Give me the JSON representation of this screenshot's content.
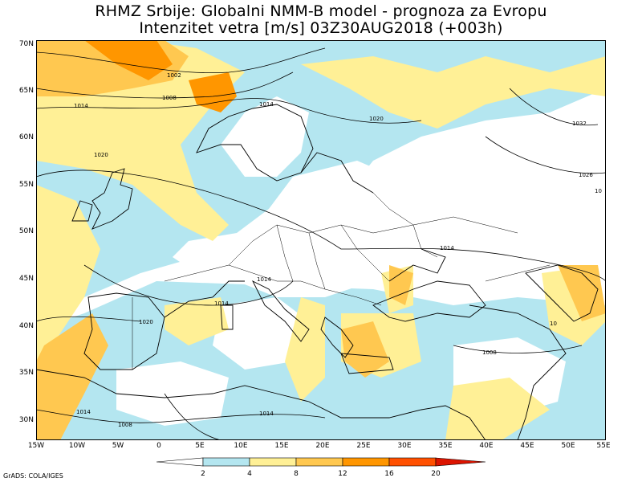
{
  "title_line1": "RHMZ Srbije: Globalni NMM-B model - prognoza za Evropu",
  "title_line2": "Intenzitet vetra [m/s] 03Z30AUG2018 (+003h)",
  "lat_labels": [
    "70N",
    "65N",
    "60N",
    "55N",
    "50N",
    "45N",
    "40N",
    "35N",
    "30N"
  ],
  "lon_labels": [
    "15W",
    "10W",
    "5W",
    "0",
    "5E",
    "10E",
    "15E",
    "20E",
    "25E",
    "30E",
    "35E",
    "40E",
    "45E",
    "50E",
    "55E"
  ],
  "legend": {
    "colors": [
      "#ffffff",
      "#b4e6f0",
      "#fff096",
      "#ffc850",
      "#ff9600",
      "#ff5000",
      "#dc1400",
      "#a00000"
    ],
    "labels": [
      "2",
      "4",
      "8",
      "12",
      "16",
      "20"
    ]
  },
  "isobar_labels": [
    "1002",
    "1008",
    "1014",
    "1014",
    "1020",
    "1032",
    "1026",
    "10",
    "1014",
    "1014",
    "1020",
    "1014",
    "1014",
    "1008",
    "1008",
    "1014",
    "1020",
    "10"
  ],
  "credit": "GrADS: COLA/IGES"
}
